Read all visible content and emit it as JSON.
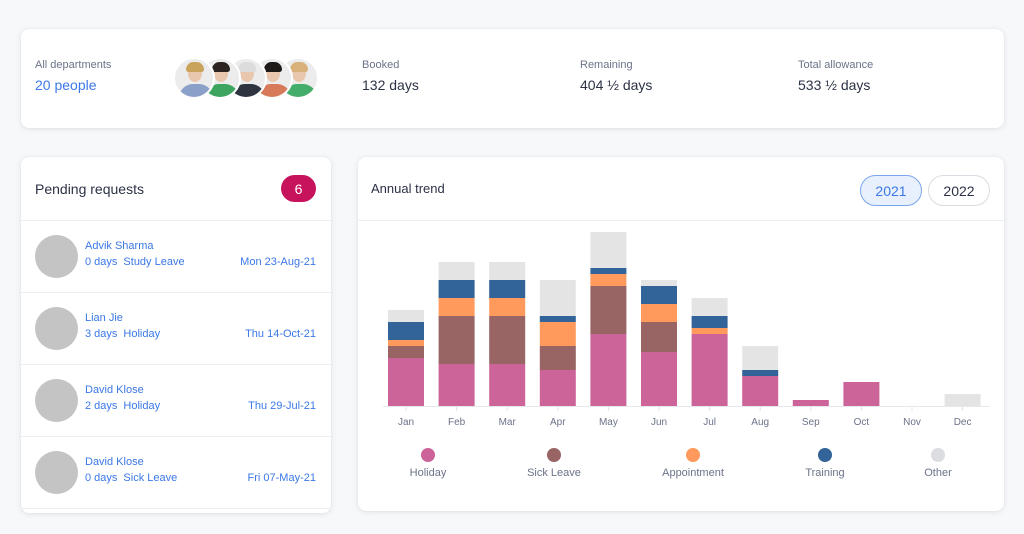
{
  "summary": {
    "people_label": "All departments",
    "people_value": "20 people",
    "avatars": [
      {
        "name": "avatar-1",
        "hair": "#c9a35b",
        "body": "#8aa0c8"
      },
      {
        "name": "avatar-2",
        "hair": "#2b2420",
        "body": "#3da560"
      },
      {
        "name": "avatar-3",
        "hair": "#dcdcdc",
        "body": "#2e3440"
      },
      {
        "name": "avatar-4",
        "hair": "#1e1a18",
        "body": "#d77a5a"
      },
      {
        "name": "avatar-5",
        "hair": "#d8b27a",
        "body": "#45ad6b"
      }
    ],
    "booked_label": "Booked",
    "booked_value": "132 days",
    "remaining_label": "Remaining",
    "remaining_value": "404 ½ days",
    "allowance_label": "Total allowance",
    "allowance_value": "533 ½ days"
  },
  "pending": {
    "title": "Pending requests",
    "count": "6",
    "requests": [
      {
        "name": "Advik Sharma",
        "days": "0 days",
        "type": "Study Leave",
        "date": "Mon 23-Aug-21"
      },
      {
        "name": "Lian Jie",
        "days": "3 days",
        "type": "Holiday",
        "date": "Thu 14-Oct-21"
      },
      {
        "name": "David Klose",
        "days": "2 days",
        "type": "Holiday",
        "date": "Thu 29-Jul-21"
      },
      {
        "name": "David Klose",
        "days": "0 days",
        "type": "Sick Leave",
        "date": "Fri 07-May-21"
      }
    ]
  },
  "trend": {
    "title": "Annual trend",
    "years": [
      {
        "label": "2021",
        "active": true
      },
      {
        "label": "2022",
        "active": false
      }
    ]
  },
  "chart_data": {
    "type": "bar",
    "stacked": true,
    "title": "Annual trend",
    "xlabel": "",
    "ylabel": "",
    "categories": [
      "Jan",
      "Feb",
      "Mar",
      "Apr",
      "May",
      "Jun",
      "Jul",
      "Aug",
      "Sep",
      "Oct",
      "Nov",
      "Dec"
    ],
    "series": [
      {
        "name": "Holiday",
        "color": "#cc6499",
        "values": [
          8,
          7,
          7,
          6,
          12,
          9,
          12,
          5,
          1,
          4,
          0,
          0
        ]
      },
      {
        "name": "Sick Leave",
        "color": "#986464",
        "values": [
          2,
          8,
          8,
          4,
          8,
          5,
          0,
          0,
          0,
          0,
          0,
          0
        ]
      },
      {
        "name": "Appointment",
        "color": "#ff9a5c",
        "values": [
          1,
          3,
          3,
          4,
          2,
          3,
          1,
          0,
          0,
          0,
          0,
          0
        ]
      },
      {
        "name": "Training",
        "color": "#326399",
        "values": [
          3,
          3,
          3,
          1,
          1,
          3,
          2,
          1,
          0,
          0,
          0,
          0
        ]
      },
      {
        "name": "Other",
        "color": "#e4e4e4",
        "values": [
          2,
          3,
          3,
          6,
          6,
          1,
          3,
          4,
          0,
          0,
          0,
          2
        ]
      }
    ],
    "ylim": [
      0,
      30
    ],
    "grid": false,
    "legend": "bottom"
  }
}
